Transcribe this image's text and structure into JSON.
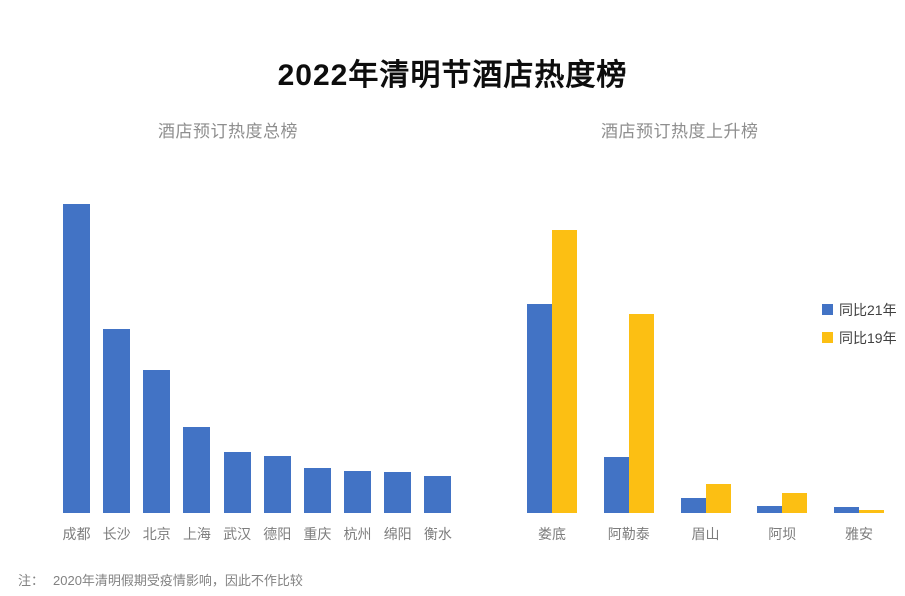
{
  "page": {
    "title": "2022年清明节酒店热度榜",
    "note_prefix": "注：",
    "note_body": "2020年清明假期受疫情影响，因此不作比较"
  },
  "colors": {
    "bar_blue": "#4273C5",
    "bar_yellow": "#FCBF13",
    "title_text": "#0d0d0d",
    "subtitle_text": "#8e8e8e",
    "axis_label_text": "#7d7d7d",
    "note_text": "#828282"
  },
  "chart_data": [
    {
      "type": "bar",
      "title": "酒店预订热度总榜",
      "categories": [
        "成都",
        "长沙",
        "北京",
        "上海",
        "武汉",
        "德阳",
        "重庆",
        "杭州",
        "绵阳",
        "衡水"
      ],
      "values": [
        100,
        59.5,
        46.3,
        27.8,
        19.7,
        18.4,
        14.6,
        13.6,
        13.3,
        12.0
      ],
      "unit": "热度指数（最高=100，按条高估读）",
      "ylim": [
        0,
        100
      ],
      "grid": false,
      "axis_lines": false,
      "bar_color": "#4273C5",
      "legend_position": "none"
    },
    {
      "type": "bar",
      "title": "酒店预订热度上升榜",
      "categories": [
        "娄底",
        "阿勒泰",
        "眉山",
        "阿坝",
        "雅安"
      ],
      "series": [
        {
          "name": "同比21年",
          "color": "#4273C5",
          "values": [
            73.9,
            19.8,
            5.3,
            2.5,
            2.1
          ]
        },
        {
          "name": "同比19年",
          "color": "#FCBF13",
          "values": [
            100,
            70.3,
            10.2,
            7.1,
            1.2
          ]
        }
      ],
      "unit": "上升热度指数（最高=100，按条高估读）",
      "ylim": [
        0,
        100
      ],
      "grid": false,
      "axis_lines": false,
      "legend_position": "right"
    }
  ]
}
